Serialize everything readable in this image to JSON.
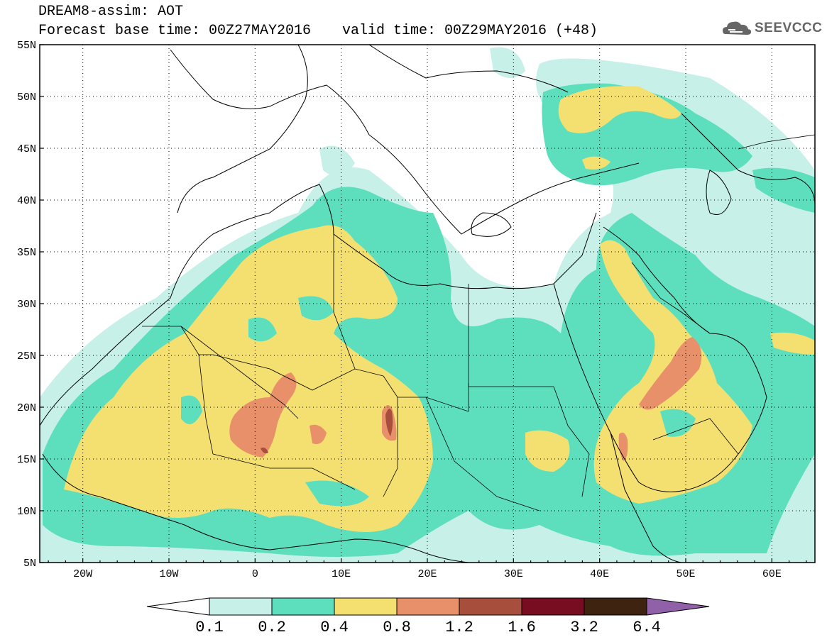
{
  "header": {
    "title": "DREAM8-assim: AOT",
    "base_time": "Forecast base time: 00Z27MAY2016",
    "valid_time": "valid time: 00Z29MAY2016 (+48)",
    "logo_text": "SEEVCCC"
  },
  "map": {
    "lat_labels": [
      "55N",
      "50N",
      "45N",
      "40N",
      "35N",
      "30N",
      "25N",
      "20N",
      "15N",
      "10N",
      "5N"
    ],
    "lon_labels": [
      "20W",
      "10W",
      "0",
      "10E",
      "20E",
      "30E",
      "40E",
      "50E",
      "60E"
    ],
    "lat_range": [
      5,
      55
    ],
    "lon_range": [
      -25,
      65
    ],
    "grid": "dotted"
  },
  "colorbar": {
    "levels": [
      "0.1",
      "0.2",
      "0.4",
      "0.8",
      "1.2",
      "1.6",
      "3.2",
      "6.4"
    ],
    "colors": [
      "#c6f0e8",
      "#5ddfbe",
      "#f4e070",
      "#e8906a",
      "#a84e3c",
      "#780c20",
      "#3e2410",
      "#9060a8"
    ]
  }
}
